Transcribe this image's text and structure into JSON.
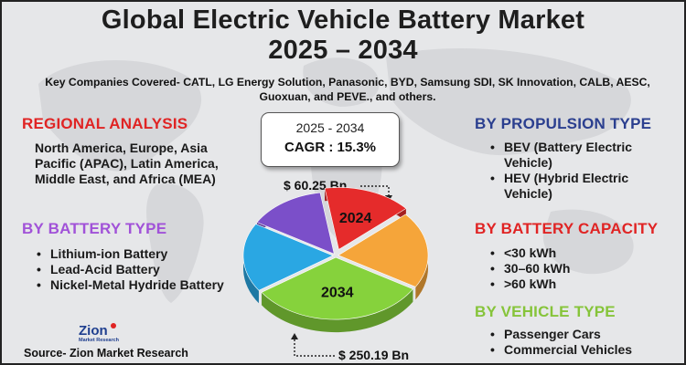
{
  "title_line1": "Global Electric Vehicle Battery Market",
  "title_line2": "2025 – 2034",
  "companies": "Key Companies Covered- CATL, LG Energy Solution, Panasonic, BYD, Samsung SDI, SK Innovation, CALB, AESC, Guoxuan, and PEVE., and others.",
  "regional": {
    "heading": "REGIONAL ANALYSIS",
    "color": "#e02424",
    "text": "North America, Europe, Asia Pacific (APAC), Latin America, Middle East, and Africa (MEA)"
  },
  "battery_type": {
    "heading": "BY BATTERY TYPE",
    "color": "#a152d8",
    "items": [
      "Lithium-ion Battery",
      "Lead-Acid Battery",
      "Nickel-Metal Hydride Battery"
    ]
  },
  "propulsion": {
    "heading": "BY PROPULSION TYPE",
    "color": "#2b3f8f",
    "items": [
      "BEV (Battery Electric Vehicle)",
      "HEV (Hybrid Electric Vehicle)"
    ]
  },
  "capacity": {
    "heading": "BY BATTERY CAPACITY",
    "color": "#e02424",
    "items": [
      "<30 kWh",
      "30–60 kWh",
      ">60 kWh"
    ]
  },
  "vehicle_type": {
    "heading": "BY VEHICLE TYPE",
    "color": "#86c43a",
    "items": [
      "Passenger Cars",
      "Commercial Vehicles"
    ]
  },
  "cagr": {
    "range": "2025 - 2034",
    "text": "CAGR : 15.3%"
  },
  "value_2024": "$ 60.25 Bn",
  "value_2034": "$ 250.19 Bn",
  "logo": {
    "name": "Zion",
    "sub": "Market Research"
  },
  "source": "Source- Zion Market Research",
  "chart_data": {
    "type": "pie",
    "title": "",
    "slices": [
      {
        "value": 16,
        "color": "#e52b2b",
        "label": "2024"
      },
      {
        "value": 20,
        "color": "#f5a53a",
        "label": ""
      },
      {
        "value": 32,
        "color": "#86d23c",
        "label": "2034"
      },
      {
        "value": 18,
        "color": "#2aa7e3",
        "label": ""
      },
      {
        "value": 14,
        "color": "#7b4fc9",
        "label": ""
      }
    ]
  }
}
